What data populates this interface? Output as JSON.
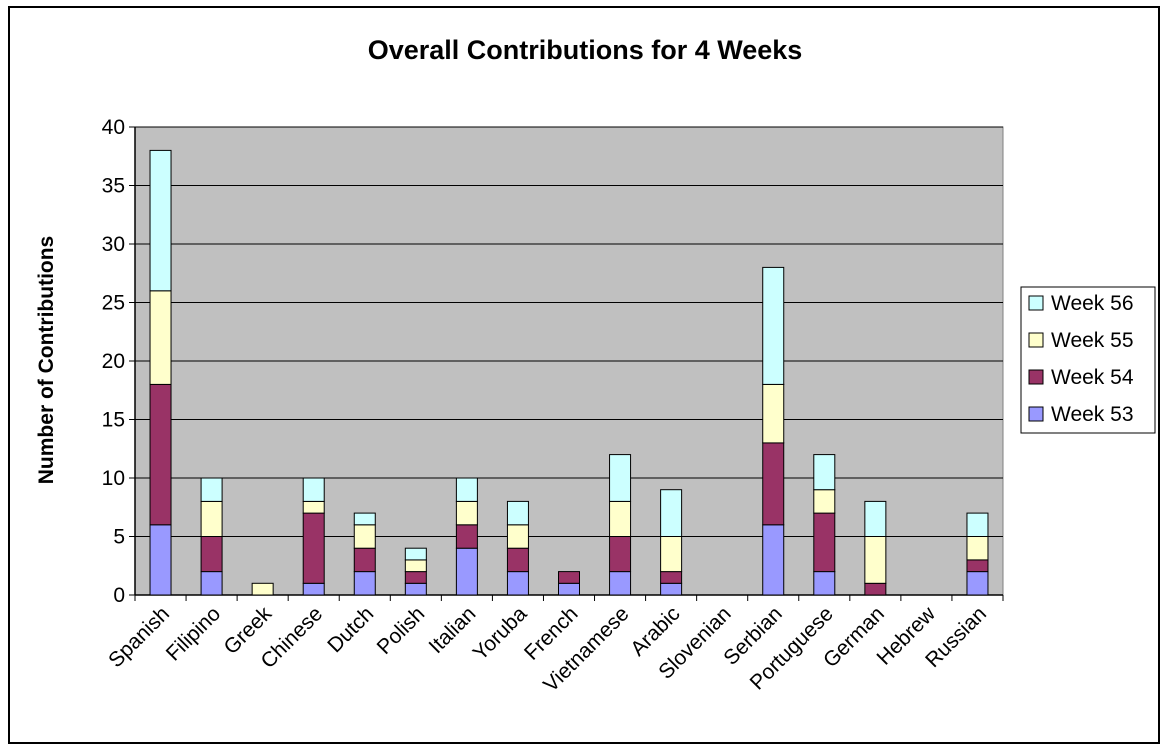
{
  "chart_data": {
    "type": "bar",
    "stacked": true,
    "title": "Overall Contributions for 4 Weeks",
    "xlabel": "",
    "ylabel": "Number of Contributions",
    "ylim": [
      0,
      40
    ],
    "yticks": [
      0,
      5,
      10,
      15,
      20,
      25,
      30,
      35,
      40
    ],
    "grid": true,
    "legend_position": "right",
    "categories": [
      "Spanish",
      "Filipino",
      "Greek",
      "Chinese",
      "Dutch",
      "Polish",
      "Italian",
      "Yoruba",
      "French",
      "Vietnamese",
      "Arabic",
      "Slovenian",
      "Serbian",
      "Portuguese",
      "German",
      "Hebrew",
      "Russian"
    ],
    "series": [
      {
        "name": "Week 53",
        "color": "#9999ff",
        "values": [
          6,
          2,
          0,
          1,
          2,
          1,
          4,
          2,
          1,
          2,
          1,
          0,
          6,
          2,
          0,
          0,
          2
        ]
      },
      {
        "name": "Week 54",
        "color": "#993366",
        "values": [
          12,
          3,
          0,
          6,
          2,
          1,
          2,
          2,
          1,
          3,
          1,
          0,
          7,
          5,
          1,
          0,
          1
        ]
      },
      {
        "name": "Week 55",
        "color": "#ffffcc",
        "values": [
          8,
          3,
          1,
          1,
          2,
          1,
          2,
          2,
          0,
          3,
          3,
          0,
          5,
          2,
          4,
          0,
          2
        ]
      },
      {
        "name": "Week 56",
        "color": "#ccffff",
        "values": [
          12,
          2,
          0,
          2,
          1,
          1,
          2,
          2,
          0,
          4,
          4,
          0,
          10,
          3,
          3,
          0,
          2
        ]
      }
    ],
    "plot_background": "#c0c0c0"
  }
}
